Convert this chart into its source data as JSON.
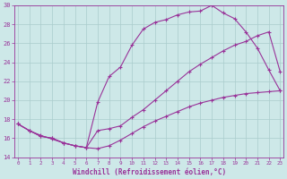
{
  "title": "",
  "xlabel": "Windchill (Refroidissement éolien,°C)",
  "ylabel": "",
  "bg_color": "#cde8e8",
  "grid_color": "#aacccc",
  "line_color": "#993399",
  "xlim": [
    -0.3,
    23.3
  ],
  "ylim": [
    14,
    30
  ],
  "yticks": [
    14,
    16,
    18,
    20,
    22,
    24,
    26,
    28,
    30
  ],
  "xticks": [
    0,
    1,
    2,
    3,
    4,
    5,
    6,
    7,
    8,
    9,
    10,
    11,
    12,
    13,
    14,
    15,
    16,
    17,
    18,
    19,
    20,
    21,
    22,
    23
  ],
  "line1_x": [
    0,
    1,
    2,
    3,
    4,
    5,
    6,
    7,
    8,
    9,
    10,
    11,
    12,
    13,
    14,
    15,
    16,
    17,
    18,
    19,
    20,
    21,
    22,
    23
  ],
  "line1_y": [
    17.5,
    16.8,
    16.2,
    16.0,
    15.5,
    15.2,
    15.0,
    14.9,
    15.2,
    15.8,
    16.5,
    17.2,
    17.8,
    18.3,
    18.8,
    19.3,
    19.7,
    20.0,
    20.3,
    20.5,
    20.7,
    20.8,
    20.9,
    21.0
  ],
  "line2_x": [
    0,
    1,
    2,
    3,
    4,
    5,
    6,
    7,
    8,
    9,
    10,
    11,
    12,
    13,
    14,
    15,
    16,
    17,
    18,
    19,
    20,
    21,
    22,
    23
  ],
  "line2_y": [
    17.5,
    16.8,
    16.2,
    16.0,
    15.5,
    15.2,
    15.0,
    19.8,
    22.5,
    23.5,
    25.8,
    27.5,
    28.2,
    28.5,
    29.0,
    29.3,
    29.4,
    30.0,
    29.2,
    28.6,
    27.2,
    25.5,
    23.2,
    21.0
  ],
  "line3_x": [
    0,
    1,
    2,
    3,
    4,
    5,
    6,
    7,
    8,
    9,
    10,
    11,
    12,
    13,
    14,
    15,
    16,
    17,
    18,
    19,
    20,
    21,
    22,
    23
  ],
  "line3_y": [
    17.5,
    16.8,
    16.3,
    15.9,
    15.5,
    15.2,
    15.0,
    16.8,
    17.0,
    17.3,
    18.2,
    19.0,
    20.0,
    21.0,
    22.0,
    23.0,
    23.8,
    24.5,
    25.2,
    25.8,
    26.2,
    26.8,
    27.2,
    23.0
  ]
}
